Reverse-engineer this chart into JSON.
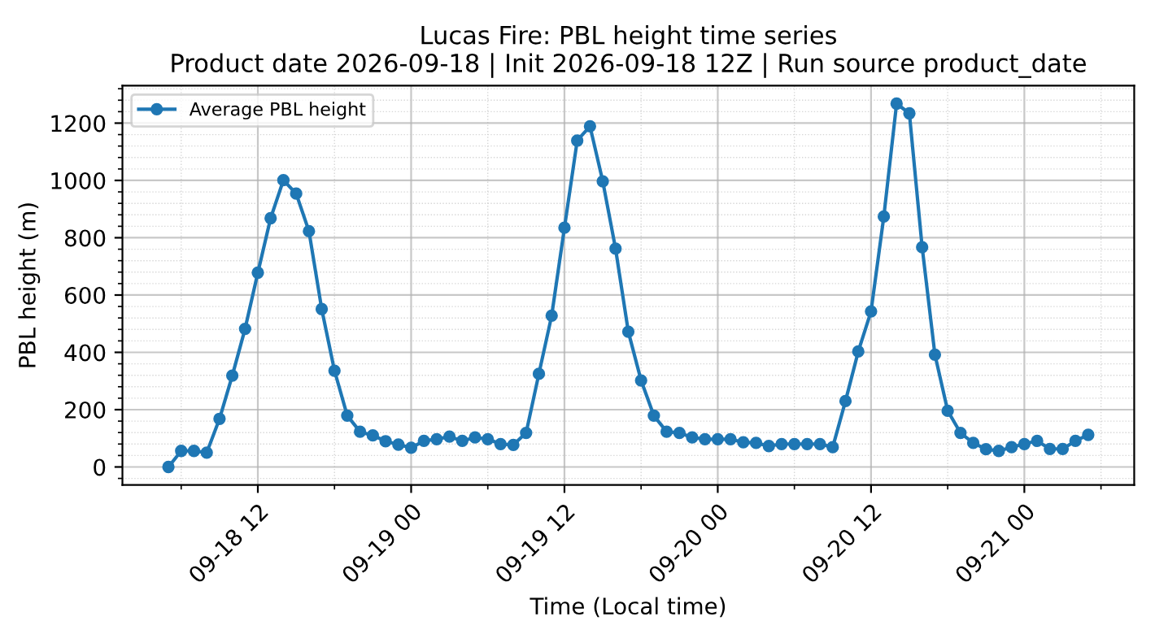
{
  "chart_data": {
    "type": "line",
    "title": "Lucas Fire: PBL height time series\nProduct date 2026-09-18 | Init 2026-09-18 12Z | Run source product_date",
    "xlabel": "Time (Local time)",
    "ylabel": "PBL height (m)",
    "x": [
      "2026-09-18T05:00",
      "2026-09-18T06:00",
      "2026-09-18T07:00",
      "2026-09-18T08:00",
      "2026-09-18T09:00",
      "2026-09-18T10:00",
      "2026-09-18T11:00",
      "2026-09-18T12:00",
      "2026-09-18T13:00",
      "2026-09-18T14:00",
      "2026-09-18T15:00",
      "2026-09-18T16:00",
      "2026-09-18T17:00",
      "2026-09-18T18:00",
      "2026-09-18T19:00",
      "2026-09-18T20:00",
      "2026-09-18T21:00",
      "2026-09-18T22:00",
      "2026-09-18T23:00",
      "2026-09-19T00:00",
      "2026-09-19T01:00",
      "2026-09-19T02:00",
      "2026-09-19T03:00",
      "2026-09-19T04:00",
      "2026-09-19T05:00",
      "2026-09-19T06:00",
      "2026-09-19T07:00",
      "2026-09-19T08:00",
      "2026-09-19T09:00",
      "2026-09-19T10:00",
      "2026-09-19T11:00",
      "2026-09-19T12:00",
      "2026-09-19T13:00",
      "2026-09-19T14:00",
      "2026-09-19T15:00",
      "2026-09-19T16:00",
      "2026-09-19T17:00",
      "2026-09-19T18:00",
      "2026-09-19T19:00",
      "2026-09-19T20:00",
      "2026-09-19T21:00",
      "2026-09-19T22:00",
      "2026-09-19T23:00",
      "2026-09-20T00:00",
      "2026-09-20T01:00",
      "2026-09-20T02:00",
      "2026-09-20T03:00",
      "2026-09-20T04:00",
      "2026-09-20T05:00",
      "2026-09-20T06:00",
      "2026-09-20T07:00",
      "2026-09-20T08:00",
      "2026-09-20T09:00",
      "2026-09-20T10:00",
      "2026-09-20T11:00",
      "2026-09-20T12:00",
      "2026-09-20T13:00",
      "2026-09-20T14:00",
      "2026-09-20T15:00",
      "2026-09-20T16:00",
      "2026-09-20T17:00",
      "2026-09-20T18:00",
      "2026-09-20T19:00",
      "2026-09-20T20:00",
      "2026-09-20T21:00",
      "2026-09-20T22:00",
      "2026-09-20T23:00",
      "2026-09-21T00:00",
      "2026-09-21T01:00",
      "2026-09-21T02:00",
      "2026-09-21T03:00",
      "2026-09-21T04:00",
      "2026-09-21T05:00"
    ],
    "series": [
      {
        "name": "Average PBL height",
        "color": "#1f77b4",
        "values": [
          0,
          56,
          56,
          50,
          168,
          319,
          482,
          678,
          868,
          1001,
          954,
          823,
          551,
          336,
          179,
          123,
          110,
          90,
          78,
          67,
          91,
          97,
          106,
          91,
          103,
          97,
          80,
          77,
          119,
          325,
          528,
          835,
          1139,
          1189,
          997,
          762,
          472,
          302,
          179,
          123,
          119,
          103,
          97,
          97,
          97,
          86,
          84,
          73,
          80,
          80,
          80,
          80,
          69,
          230,
          403,
          543,
          874,
          1268,
          1234,
          767,
          392,
          196,
          119,
          84,
          62,
          56,
          69,
          80,
          91,
          63,
          63,
          91,
          112
        ]
      }
    ],
    "xlim": [
      "2026-09-18T01:24",
      "2026-09-21T08:36"
    ],
    "xticks": [
      {
        "value": "2026-09-18T12:00",
        "label": "09-18 12"
      },
      {
        "value": "2026-09-19T00:00",
        "label": "09-19 00"
      },
      {
        "value": "2026-09-19T12:00",
        "label": "09-19 12"
      },
      {
        "value": "2026-09-20T00:00",
        "label": "09-20 00"
      },
      {
        "value": "2026-09-20T12:00",
        "label": "09-20 12"
      },
      {
        "value": "2026-09-21T00:00",
        "label": "09-21 00"
      }
    ],
    "ylim": [
      -63,
      1331
    ],
    "yticks": [
      0,
      200,
      400,
      600,
      800,
      1000,
      1200
    ],
    "grid": true,
    "legend": "top left",
    "marker": "circle",
    "line_style": "solid"
  }
}
